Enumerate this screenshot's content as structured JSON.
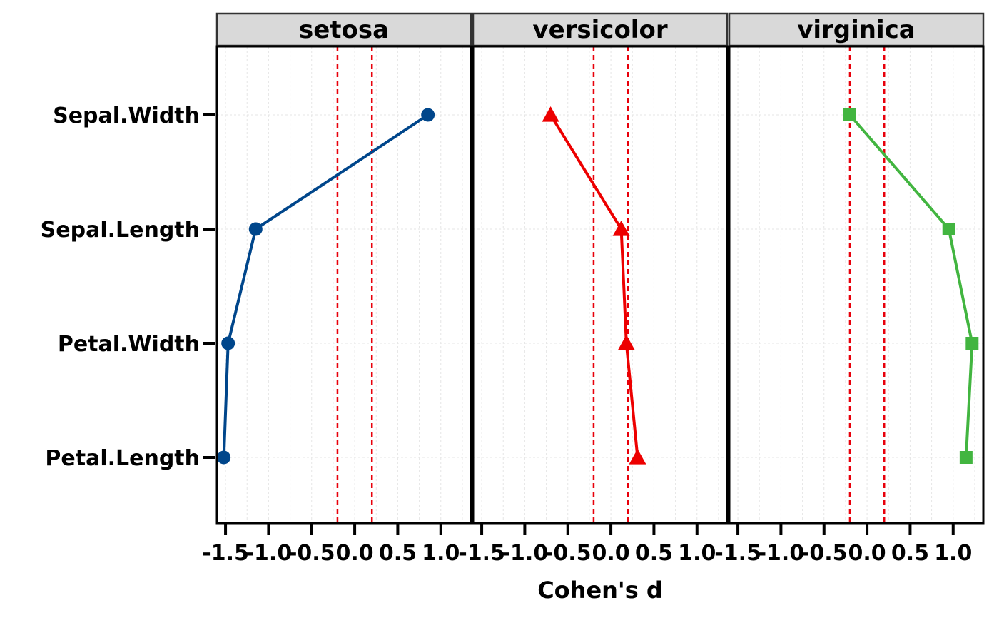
{
  "chart_data": {
    "type": "line",
    "xlabel": "Cohen's d",
    "ylabel": "",
    "xlim": [
      -1.6,
      1.35
    ],
    "x_ticks": [
      -1.5,
      -1.0,
      -0.5,
      0.0,
      0.5,
      1.0
    ],
    "x_tick_labels": [
      "-1.5",
      "-1.0",
      "-0.5",
      "0.0",
      "0.5",
      "1.0"
    ],
    "categories": [
      "Sepal.Width",
      "Sepal.Length",
      "Petal.Width",
      "Petal.Length"
    ],
    "reference_lines": [
      -0.2,
      0.2
    ],
    "reference_line_color": "#e8000b",
    "grid": true,
    "panels": [
      {
        "name": "setosa",
        "marker": "circle",
        "color": "#00468b",
        "values": [
          0.85,
          -1.15,
          -1.47,
          -1.52
        ]
      },
      {
        "name": "versicolor",
        "marker": "triangle",
        "color": "#ed0000",
        "values": [
          -0.7,
          0.12,
          0.18,
          0.31
        ]
      },
      {
        "name": "virginica",
        "marker": "square",
        "color": "#42b540",
        "values": [
          -0.2,
          0.95,
          1.22,
          1.15
        ]
      }
    ]
  }
}
